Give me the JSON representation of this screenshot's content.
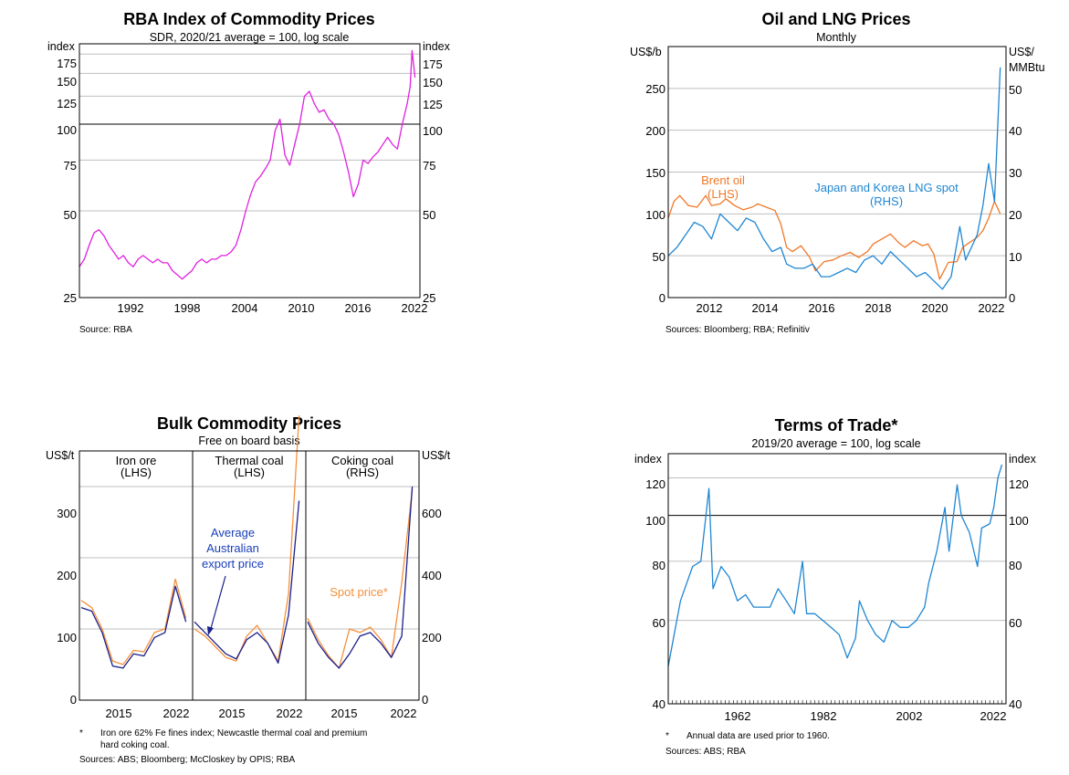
{
  "colors": {
    "commodity": "#e020e0",
    "brent": "#f07828",
    "lng": "#1f86d2",
    "avg_export": "#1a1f8c",
    "spot": "#f5903a",
    "tot": "#1f86d2",
    "annotation_blue": "#1a3fb8",
    "grid": "#bfbfbf"
  },
  "charts": [
    {
      "title": "RBA Index of Commodity Prices",
      "subtitle": "SDR, 2020/21 average = 100, log scale",
      "unit_left": "index",
      "unit_right": "index",
      "y_ticks": [
        "175",
        "150",
        "125",
        "100",
        "75",
        "50",
        "25"
      ],
      "x_ticks": [
        "1992",
        "1998",
        "2004",
        "2010",
        "2016",
        "2022"
      ],
      "source": "Source:   RBA"
    },
    {
      "title": "Oil and LNG Prices",
      "subtitle": "Monthly",
      "unit_left": "US$/b",
      "unit_right_1": "US$/",
      "unit_right_2": "MMBtu",
      "y_ticks_left": [
        "250",
        "200",
        "150",
        "100",
        "50",
        "0"
      ],
      "y_ticks_right": [
        "50",
        "40",
        "30",
        "20",
        "10",
        "0"
      ],
      "x_ticks": [
        "2012",
        "2014",
        "2016",
        "2018",
        "2020",
        "2022"
      ],
      "series_brent_1": "Brent oil",
      "series_brent_2": "(LHS)",
      "series_lng_1": "Japan and Korea LNG spot",
      "series_lng_2": "(RHS)",
      "source": "Sources: Bloomberg; RBA; Refinitiv"
    },
    {
      "title": "Bulk Commodity Prices",
      "subtitle": "Free on board basis",
      "unit_left": "US$/t",
      "unit_right": "US$/t",
      "y_ticks_left": [
        "300",
        "200",
        "100",
        "0"
      ],
      "y_ticks_right": [
        "600",
        "400",
        "200",
        "0"
      ],
      "x_ticks": [
        "2015",
        "2022",
        "2015",
        "2022",
        "2015",
        "2022"
      ],
      "panel1_1": "Iron ore",
      "panel1_2": "(LHS)",
      "panel2_1": "Thermal coal",
      "panel2_2": "(LHS)",
      "panel3_1": "Coking coal",
      "panel3_2": "(RHS)",
      "avg_label_1": "Average",
      "avg_label_2": "Australian",
      "avg_label_3": "export price",
      "spot_label": "Spot price*",
      "footnote_star": "*",
      "footnote_1": "Iron ore 62% Fe fines index; Newcastle thermal coal and premium",
      "footnote_2": "hard coking coal.",
      "source": "Sources: ABS; Bloomberg; McCloskey by OPIS; RBA"
    },
    {
      "title": "Terms of Trade*",
      "subtitle": "2019/20 average = 100, log scale",
      "unit_left": "index",
      "unit_right": "index",
      "y_ticks": [
        "120",
        "100",
        "80",
        "60",
        "40"
      ],
      "x_ticks": [
        "1962",
        "1982",
        "2002",
        "2022"
      ],
      "footnote_star": "*",
      "footnote_1": "Annual data are used prior to 1960.",
      "source": "Sources: ABS; RBA"
    }
  ],
  "chart_data": [
    {
      "type": "line",
      "title": "RBA Index of Commodity Prices",
      "subtitle": "SDR, 2020/21 average = 100, log scale",
      "ylabel": "index",
      "yscale": "log",
      "ylim": [
        25,
        190
      ],
      "xlim": [
        1988,
        2022.8
      ],
      "series": [
        {
          "x": [
            1988.0,
            1988.5,
            1989.0,
            1989.5,
            1990.0,
            1990.5,
            1991.0,
            1991.5,
            1992.0,
            1992.5,
            1993.0,
            1993.5,
            1994.0,
            1994.5,
            1995.0,
            1995.5,
            1996.0,
            1996.5,
            1997.0,
            1997.5,
            1998.0,
            1998.5,
            1999.0,
            1999.5,
            2000.0,
            2000.5,
            2001.0,
            2001.5,
            2002.0,
            2002.5,
            2003.0,
            2003.5,
            2004.0,
            2004.5,
            2005.0,
            2005.5,
            2006.0,
            2006.5,
            2007.0,
            2007.5,
            2008.0,
            2008.5,
            2009.0,
            2009.5,
            2010.0,
            2010.5,
            2011.0,
            2011.5,
            2012.0,
            2012.5,
            2013.0,
            2013.5,
            2014.0,
            2014.5,
            2015.0,
            2015.5,
            2016.0,
            2016.5,
            2017.0,
            2017.5,
            2018.0,
            2018.5,
            2019.0,
            2019.5,
            2020.0,
            2020.5,
            2021.0,
            2021.5,
            2021.8,
            2022.0,
            2022.3
          ],
          "values": [
            32,
            34,
            38,
            42,
            43,
            41,
            38,
            36,
            34,
            35,
            33,
            32,
            34,
            35,
            34,
            33,
            34,
            33,
            33,
            31,
            30,
            29,
            30,
            31,
            33,
            34,
            33,
            34,
            34,
            35,
            35,
            36,
            38,
            43,
            50,
            57,
            63,
            66,
            70,
            75,
            95,
            104,
            78,
            72,
            85,
            100,
            125,
            130,
            118,
            110,
            112,
            104,
            100,
            92,
            80,
            68,
            56,
            62,
            75,
            73,
            77,
            80,
            85,
            90,
            85,
            82,
            100,
            118,
            135,
            180,
            145
          ]
        }
      ]
    },
    {
      "type": "line",
      "title": "Oil and LNG Prices",
      "subtitle": "Monthly",
      "ylabel_left": "US$/b",
      "ylabel_right": "US$/MMBtu",
      "ylim_left": [
        0,
        300
      ],
      "ylim_right": [
        0,
        60
      ],
      "xlim": [
        2010.9,
        2022.6
      ],
      "series": [
        {
          "name": "Brent oil (LHS)",
          "axis": "left",
          "x": [
            2010.9,
            2011.1,
            2011.3,
            2011.6,
            2011.9,
            2012.2,
            2012.4,
            2012.7,
            2012.9,
            2013.2,
            2013.5,
            2013.8,
            2014.0,
            2014.3,
            2014.6,
            2014.8,
            2015.0,
            2015.2,
            2015.5,
            2015.8,
            2016.0,
            2016.3,
            2016.6,
            2016.9,
            2017.2,
            2017.5,
            2017.8,
            2018.0,
            2018.3,
            2018.6,
            2018.9,
            2019.1,
            2019.4,
            2019.7,
            2019.9,
            2020.1,
            2020.3,
            2020.6,
            2020.9,
            2021.1,
            2021.3,
            2021.6,
            2021.8,
            2022.0,
            2022.2,
            2022.4
          ],
          "values": [
            95,
            115,
            122,
            110,
            108,
            122,
            110,
            112,
            118,
            110,
            105,
            108,
            112,
            108,
            104,
            88,
            60,
            55,
            62,
            48,
            32,
            43,
            45,
            50,
            54,
            48,
            55,
            64,
            70,
            76,
            65,
            60,
            68,
            62,
            64,
            52,
            22,
            42,
            43,
            60,
            65,
            72,
            80,
            95,
            115,
            100
          ]
        },
        {
          "name": "Japan and Korea LNG spot (RHS)",
          "axis": "right",
          "x": [
            2010.9,
            2011.2,
            2011.5,
            2011.8,
            2012.1,
            2012.4,
            2012.7,
            2013.0,
            2013.3,
            2013.6,
            2013.9,
            2014.2,
            2014.5,
            2014.8,
            2015.0,
            2015.3,
            2015.6,
            2015.9,
            2016.2,
            2016.5,
            2016.8,
            2017.1,
            2017.4,
            2017.7,
            2018.0,
            2018.3,
            2018.6,
            2018.9,
            2019.2,
            2019.5,
            2019.8,
            2020.1,
            2020.4,
            2020.7,
            2021.0,
            2021.2,
            2021.4,
            2021.6,
            2021.8,
            2022.0,
            2022.2,
            2022.4
          ],
          "values": [
            10,
            12,
            15,
            18,
            17,
            14,
            20,
            18,
            16,
            19,
            18,
            14,
            11,
            12,
            8,
            7,
            7,
            8,
            5,
            5,
            6,
            7,
            6,
            9,
            10,
            8,
            11,
            9,
            7,
            5,
            6,
            4,
            2,
            5,
            17,
            9,
            12,
            15,
            22,
            32,
            23,
            55
          ]
        }
      ]
    },
    {
      "type": "line",
      "title": "Bulk Commodity Prices",
      "subtitle": "Free on board basis",
      "panels": [
        {
          "name": "Iron ore (LHS)",
          "ylim": [
            0,
            350
          ],
          "x": [
            2012,
            2013,
            2014,
            2015,
            2016,
            2017,
            2018,
            2019,
            2020,
            2021,
            2022
          ],
          "series": [
            {
              "name": "Spot price*",
              "values": [
                140,
                130,
                100,
                55,
                50,
                70,
                68,
                95,
                100,
                170,
                115
              ]
            },
            {
              "name": "Average Australian export price",
              "values": [
                130,
                125,
                95,
                48,
                45,
                65,
                62,
                88,
                95,
                160,
                110
              ]
            }
          ]
        },
        {
          "name": "Thermal coal (LHS)",
          "ylim": [
            0,
            350
          ],
          "x": [
            2012,
            2013,
            2014,
            2015,
            2016,
            2017,
            2018,
            2019,
            2020,
            2021,
            2022
          ],
          "series": [
            {
              "name": "Spot price*",
              "values": [
                100,
                90,
                75,
                60,
                55,
                90,
                105,
                80,
                55,
                150,
                400
              ]
            },
            {
              "name": "Average Australian export price",
              "values": [
                110,
                95,
                80,
                65,
                58,
                85,
                95,
                80,
                52,
                120,
                280
              ]
            }
          ]
        },
        {
          "name": "Coking coal (RHS)",
          "ylim": [
            0,
            700
          ],
          "x": [
            2012,
            2013,
            2014,
            2015,
            2016,
            2017,
            2018,
            2019,
            2020,
            2021,
            2022
          ],
          "series": [
            {
              "name": "Spot price*",
              "values": [
                230,
                170,
                125,
                90,
                200,
                190,
                205,
                170,
                120,
                330,
                590
              ]
            },
            {
              "name": "Average Australian export price",
              "values": [
                220,
                160,
                120,
                90,
                130,
                180,
                190,
                160,
                120,
                180,
                600
              ]
            }
          ]
        }
      ]
    },
    {
      "type": "line",
      "title": "Terms of Trade*",
      "subtitle": "2019/20 average = 100, log scale",
      "ylabel": "index",
      "yscale": "log",
      "ylim": [
        40,
        135
      ],
      "xlim": [
        1940,
        2023
      ],
      "series": [
        {
          "x": [
            1940,
            1943,
            1946,
            1948,
            1950,
            1951,
            1953,
            1955,
            1957,
            1959,
            1961,
            1963,
            1965,
            1967,
            1969,
            1971,
            1973,
            1974,
            1976,
            1978,
            1980,
            1982,
            1984,
            1986,
            1987,
            1989,
            1991,
            1993,
            1995,
            1997,
            1999,
            2001,
            2003,
            2004,
            2006,
            2008,
            2009,
            2011,
            2012,
            2014,
            2016,
            2017,
            2019,
            2020,
            2021,
            2022
          ],
          "values": [
            48,
            66,
            78,
            80,
            114,
            70,
            78,
            74,
            66,
            68,
            64,
            64,
            64,
            70,
            66,
            62,
            80,
            62,
            62,
            60,
            58,
            56,
            50,
            55,
            66,
            60,
            56,
            54,
            60,
            58,
            58,
            60,
            64,
            72,
            84,
            104,
            84,
            116,
            100,
            92,
            78,
            94,
            96,
            104,
            120,
            128
          ]
        }
      ]
    }
  ]
}
